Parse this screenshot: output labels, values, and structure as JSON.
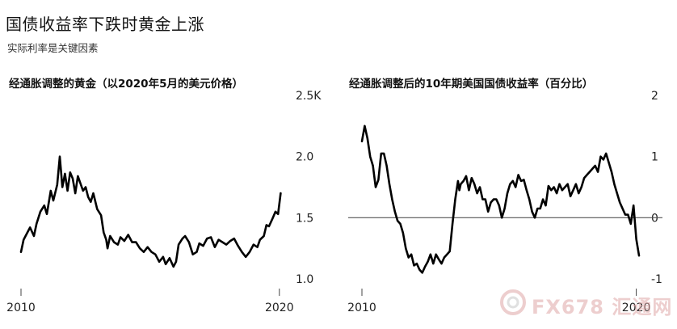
{
  "header": {
    "title": "国债收益率下跌时黄金上涨",
    "subtitle": "实际利率是关键因素"
  },
  "watermark": {
    "text": "FX678 汇通网"
  },
  "colors": {
    "line": "#000000",
    "zero_line": "#555555",
    "tick_line": "#444444"
  },
  "chart_data": [
    {
      "type": "line",
      "title": "经通胀调整的黄金（以2020年5月的美元价格）",
      "x_ticks": [
        "2010",
        "2020"
      ],
      "y_ticks": [
        "1.0",
        "1.5",
        "2.0",
        "2.5K"
      ],
      "xlim": [
        2010,
        2020.1
      ],
      "ylim": [
        1.0,
        2.5
      ],
      "grid": false,
      "series": [
        {
          "x": [
            2010.0,
            2010.1,
            2010.2,
            2010.35,
            2010.5,
            2010.6,
            2010.75,
            2010.9,
            2011.0,
            2011.15,
            2011.25,
            2011.4,
            2011.5,
            2011.6,
            2011.7,
            2011.8,
            2011.9,
            2012.0,
            2012.1,
            2012.2,
            2012.3,
            2012.4,
            2012.5,
            2012.6,
            2012.7,
            2012.8,
            2012.95,
            2013.1,
            2013.2,
            2013.3,
            2013.35,
            2013.45,
            2013.6,
            2013.75,
            2013.85,
            2014.0,
            2014.15,
            2014.3,
            2014.45,
            2014.6,
            2014.75,
            2014.9,
            2015.05,
            2015.2,
            2015.35,
            2015.5,
            2015.6,
            2015.75,
            2015.9,
            2016.0,
            2016.1,
            2016.25,
            2016.35,
            2016.5,
            2016.65,
            2016.8,
            2016.9,
            2017.05,
            2017.2,
            2017.35,
            2017.5,
            2017.65,
            2017.8,
            2017.95,
            2018.1,
            2018.25,
            2018.4,
            2018.55,
            2018.7,
            2018.85,
            2019.0,
            2019.15,
            2019.25,
            2019.4,
            2019.5,
            2019.6,
            2019.75,
            2019.85,
            2019.95,
            2020.05
          ],
          "y": [
            1.22,
            1.32,
            1.36,
            1.42,
            1.35,
            1.45,
            1.55,
            1.6,
            1.53,
            1.72,
            1.64,
            1.77,
            2.0,
            1.75,
            1.86,
            1.72,
            1.87,
            1.82,
            1.7,
            1.84,
            1.78,
            1.72,
            1.75,
            1.67,
            1.63,
            1.7,
            1.57,
            1.52,
            1.38,
            1.32,
            1.25,
            1.35,
            1.3,
            1.28,
            1.34,
            1.31,
            1.36,
            1.3,
            1.3,
            1.25,
            1.22,
            1.26,
            1.22,
            1.2,
            1.14,
            1.18,
            1.12,
            1.17,
            1.1,
            1.14,
            1.28,
            1.33,
            1.35,
            1.3,
            1.2,
            1.22,
            1.29,
            1.27,
            1.33,
            1.34,
            1.26,
            1.32,
            1.3,
            1.28,
            1.31,
            1.33,
            1.27,
            1.22,
            1.18,
            1.22,
            1.28,
            1.26,
            1.32,
            1.35,
            1.44,
            1.43,
            1.5,
            1.55,
            1.53,
            1.7
          ]
        }
      ]
    },
    {
      "type": "line",
      "title": "经通胀调整后的10年期美国国债收益率（百分比）",
      "x_ticks": [
        "2010",
        "2020"
      ],
      "y_ticks": [
        "-1",
        "0",
        "1",
        "2"
      ],
      "xlim": [
        2010,
        2020.1
      ],
      "ylim": [
        -1,
        2
      ],
      "grid": false,
      "reference_line": 0,
      "series": [
        {
          "x": [
            2010.0,
            2010.1,
            2010.2,
            2010.3,
            2010.4,
            2010.5,
            2010.6,
            2010.7,
            2010.8,
            2010.9,
            2011.0,
            2011.1,
            2011.2,
            2011.3,
            2011.4,
            2011.5,
            2011.6,
            2011.7,
            2011.8,
            2011.9,
            2012.0,
            2012.1,
            2012.2,
            2012.3,
            2012.4,
            2012.5,
            2012.6,
            2012.7,
            2012.8,
            2012.9,
            2013.0,
            2013.1,
            2013.2,
            2013.3,
            2013.4,
            2013.5,
            2013.55,
            2013.6,
            2013.7,
            2013.8,
            2013.9,
            2014.0,
            2014.1,
            2014.2,
            2014.3,
            2014.4,
            2014.5,
            2014.6,
            2014.7,
            2014.8,
            2014.9,
            2015.0,
            2015.1,
            2015.2,
            2015.3,
            2015.4,
            2015.5,
            2015.6,
            2015.7,
            2015.8,
            2015.9,
            2016.0,
            2016.1,
            2016.2,
            2016.3,
            2016.4,
            2016.5,
            2016.6,
            2016.7,
            2016.8,
            2016.9,
            2017.0,
            2017.1,
            2017.2,
            2017.3,
            2017.4,
            2017.5,
            2017.6,
            2017.7,
            2017.8,
            2017.9,
            2018.0,
            2018.1,
            2018.2,
            2018.3,
            2018.4,
            2018.5,
            2018.6,
            2018.7,
            2018.8,
            2018.9,
            2019.0,
            2019.1,
            2019.2,
            2019.3,
            2019.4,
            2019.5,
            2019.6,
            2019.7,
            2019.8,
            2019.9,
            2020.0,
            2020.1
          ],
          "y": [
            1.25,
            1.5,
            1.3,
            1.0,
            0.85,
            0.5,
            0.62,
            1.05,
            1.05,
            0.85,
            0.55,
            0.3,
            0.1,
            -0.05,
            -0.1,
            -0.25,
            -0.5,
            -0.65,
            -0.6,
            -0.78,
            -0.75,
            -0.85,
            -0.9,
            -0.8,
            -0.72,
            -0.6,
            -0.75,
            -0.6,
            -0.68,
            -0.75,
            -0.65,
            -0.6,
            -0.55,
            -0.1,
            0.3,
            0.6,
            0.45,
            0.55,
            0.6,
            0.68,
            0.45,
            0.65,
            0.55,
            0.4,
            0.5,
            0.3,
            0.3,
            0.1,
            0.25,
            0.3,
            0.3,
            0.2,
            0.0,
            0.15,
            0.4,
            0.55,
            0.6,
            0.5,
            0.7,
            0.6,
            0.62,
            0.45,
            0.3,
            0.1,
            0.0,
            0.15,
            0.15,
            0.3,
            0.2,
            0.52,
            0.45,
            0.5,
            0.4,
            0.55,
            0.45,
            0.5,
            0.55,
            0.35,
            0.45,
            0.55,
            0.4,
            0.5,
            0.65,
            0.7,
            0.75,
            0.8,
            0.85,
            0.75,
            1.0,
            0.95,
            1.05,
            0.9,
            0.75,
            0.55,
            0.4,
            0.25,
            0.15,
            0.05,
            0.05,
            -0.1,
            0.2,
            -0.35,
            -0.62
          ]
        }
      ]
    }
  ]
}
